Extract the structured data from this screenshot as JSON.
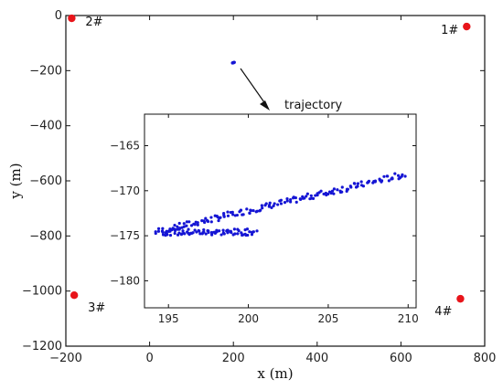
{
  "chart_data": [
    {
      "type": "scatter",
      "title": "",
      "xlabel": "x (m)",
      "ylabel": "y (m)",
      "xlim": [
        -200,
        800
      ],
      "ylim": [
        -1200,
        0
      ],
      "xticks": [
        -200,
        0,
        200,
        400,
        600,
        800
      ],
      "yticks": [
        0,
        -200,
        -400,
        -600,
        -800,
        -1000,
        -1200
      ],
      "xtick_labels": [
        "−200",
        "0",
        "200",
        "400",
        "600",
        "800"
      ],
      "ytick_labels": [
        "0",
        "−200",
        "−400",
        "−600",
        "−800",
        "−1000",
        "−1200"
      ],
      "grid": false,
      "point_color": "#e8141a",
      "anchors": [
        {
          "label": "1#",
          "x": 757,
          "y": -40
        },
        {
          "label": "2#",
          "x": -186,
          "y": -10
        },
        {
          "label": "3#",
          "x": -180,
          "y": -1015
        },
        {
          "label": "4#",
          "x": 742,
          "y": -1028
        }
      ],
      "trajectory_cluster": {
        "x": [
          198,
          200,
          202
        ],
        "y": [
          -172,
          -171,
          -170
        ],
        "color": "#1515d4"
      },
      "annotation": "trajectory"
    },
    {
      "type": "scatter",
      "title": "",
      "xlim": [
        193.5,
        210.5
      ],
      "ylim": [
        -183,
        -161.5
      ],
      "xticks": [
        195,
        200,
        205,
        210
      ],
      "yticks": [
        -165,
        -170,
        -175,
        -180
      ],
      "xtick_labels": [
        "195",
        "200",
        "205",
        "210"
      ],
      "ytick_labels": [
        "−165",
        "−170",
        "−175",
        "−180"
      ],
      "grid": false,
      "point_color": "#1515d4",
      "series_upper": {
        "x_start": 194.2,
        "x_end": 209.8,
        "y_start": -174.6,
        "y_end": -168.2,
        "count": 160
      },
      "series_lower": {
        "x_start": 194.6,
        "x_end": 200.5,
        "y_level": -174.6,
        "count": 80
      }
    }
  ]
}
